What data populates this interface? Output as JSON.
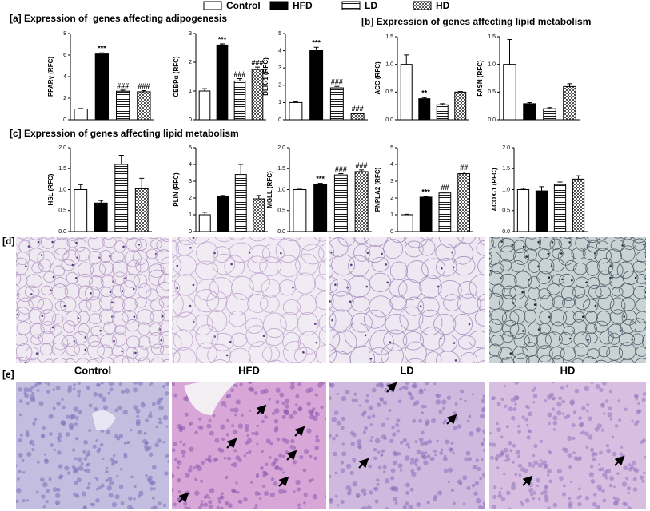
{
  "legend": {
    "items": [
      {
        "name": "Control",
        "pattern": "solid",
        "color": "#ffffff"
      },
      {
        "name": "HFD",
        "pattern": "solid",
        "color": "#000000"
      },
      {
        "name": "LD",
        "pattern": "stripes",
        "color": "#ffffff"
      },
      {
        "name": "HD",
        "pattern": "checks",
        "color": "#ffffff"
      }
    ]
  },
  "headings": [
    "[a] Expression of  genes affecting adipogenesis",
    "[b] Expression of genes affecting lipid metabolism",
    "[c] Expression of genes affecting lipid metabolism",
    "[d]",
    "[e]"
  ],
  "histology_labels": [
    "Control",
    "HFD",
    "LD",
    "HD"
  ],
  "chart_data": [
    {
      "type": "bar",
      "ylabel": "PPARγ (RFC)",
      "values": [
        1.0,
        6.1,
        2.65,
        2.6
      ],
      "errors": [
        0.05,
        0.1,
        0.1,
        0.1
      ],
      "annotations": [
        null,
        "***",
        "###",
        "###"
      ],
      "ylim": [
        0,
        8
      ],
      "yticks": [
        0,
        2,
        4,
        6,
        8
      ]
    },
    {
      "type": "bar",
      "ylabel": "CEBPα (RFC)",
      "values": [
        1.0,
        2.6,
        1.35,
        1.75
      ],
      "errors": [
        0.08,
        0.04,
        0.08,
        0.08
      ],
      "annotations": [
        null,
        "***",
        "###",
        "###"
      ],
      "ylim": [
        0,
        3
      ],
      "yticks": [
        0,
        1,
        2,
        3
      ]
    },
    {
      "type": "bar",
      "ylabel": "DLK-1 (RFC)",
      "values": [
        1.0,
        4.05,
        1.85,
        0.35
      ],
      "errors": [
        0.05,
        0.15,
        0.08,
        0.03
      ],
      "annotations": [
        null,
        "***",
        "###",
        "###"
      ],
      "ylim": [
        0,
        5
      ],
      "yticks": [
        0,
        1,
        2,
        3,
        4,
        5
      ]
    },
    {
      "type": "bar",
      "ylabel": "ACC (RFC)",
      "values": [
        1.0,
        0.38,
        0.27,
        0.5
      ],
      "errors": [
        0.17,
        0.02,
        0.02,
        0.01
      ],
      "annotations": [
        null,
        "**",
        null,
        null
      ],
      "ylim": [
        0,
        1.5
      ],
      "yticks": [
        {
          "value": 0,
          "label": "0.0"
        },
        0.5,
        {
          "value": 1,
          "label": "1.0"
        },
        1.5
      ]
    },
    {
      "type": "bar",
      "ylabel": "FASN (RFC)",
      "values": [
        1.0,
        0.29,
        0.2,
        0.6
      ],
      "errors": [
        0.45,
        0.02,
        0.02,
        0.05
      ],
      "annotations": [
        null,
        null,
        null,
        null
      ],
      "ylim": [
        0,
        1.5
      ],
      "yticks": [
        {
          "value": 0,
          "label": "0.0"
        },
        0.5,
        {
          "value": 1,
          "label": "1.0"
        },
        1.5
      ]
    },
    {
      "type": "bar",
      "ylabel": "HSL (RFC)",
      "values": [
        1.0,
        0.68,
        1.6,
        1.02
      ],
      "errors": [
        0.12,
        0.06,
        0.22,
        0.25
      ],
      "annotations": [
        null,
        null,
        null,
        null
      ],
      "ylim": [
        0,
        2
      ],
      "yticks": [
        {
          "value": 0,
          "label": "0.0"
        },
        0.5,
        {
          "value": 1,
          "label": "1.0"
        },
        1.5,
        {
          "value": 2,
          "label": "2.0"
        }
      ]
    },
    {
      "type": "bar",
      "ylabel": "PLIN (RFC)",
      "values": [
        1.0,
        2.1,
        3.4,
        1.95
      ],
      "errors": [
        0.15,
        0.05,
        0.6,
        0.2
      ],
      "annotations": [
        null,
        null,
        null,
        null
      ],
      "ylim": [
        0,
        5
      ],
      "yticks": [
        0,
        1,
        2,
        3,
        4,
        5
      ]
    },
    {
      "type": "bar",
      "ylabel": "MGLL (RFC)",
      "values": [
        1.0,
        1.13,
        1.35,
        1.43
      ],
      "errors": [
        0.01,
        0.02,
        0.03,
        0.04
      ],
      "annotations": [
        null,
        "***",
        "###",
        "###"
      ],
      "ylim": [
        0,
        2
      ],
      "yticks": [
        {
          "value": 0,
          "label": "0.0"
        },
        0.5,
        {
          "value": 1,
          "label": "1.0"
        },
        1.5,
        {
          "value": 2,
          "label": "2.0"
        }
      ]
    },
    {
      "type": "bar",
      "ylabel": "PNPLA2 (RFC)",
      "values": [
        1.0,
        2.05,
        2.3,
        3.45
      ],
      "errors": [
        0.03,
        0.03,
        0.05,
        0.1
      ],
      "annotations": [
        null,
        "***",
        "##",
        "##"
      ],
      "ylim": [
        0,
        5
      ],
      "yticks": [
        0,
        1,
        2,
        3,
        4,
        5
      ]
    },
    {
      "type": "bar",
      "ylabel": "ACOX-1 (RFC)",
      "values": [
        1.0,
        0.97,
        1.12,
        1.25
      ],
      "errors": [
        0.03,
        0.1,
        0.06,
        0.08
      ],
      "annotations": [
        null,
        null,
        null,
        null
      ],
      "ylim": [
        0,
        2
      ],
      "yticks": [
        {
          "value": 0,
          "label": "0.0"
        },
        0.5,
        {
          "value": 1,
          "label": "1.0"
        },
        1.5,
        {
          "value": 2,
          "label": "2.0"
        }
      ]
    }
  ]
}
